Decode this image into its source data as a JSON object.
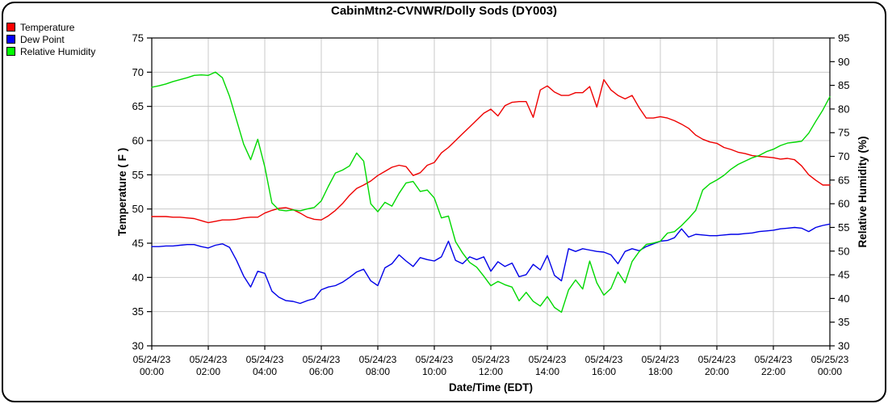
{
  "title": "CabinMtn2-CVNWR/Dolly Sods (DY003)",
  "chart_data": {
    "type": "line",
    "title": "CabinMtn2-CVNWR/Dolly Sods (DY003)",
    "x_label": "Date/Time (EDT)",
    "interval_minutes": 15,
    "start": "05/24/23 00:00",
    "end": "05/25/23 00:00",
    "grid": true,
    "legend_position": "top-left",
    "background_color": "#ffffff",
    "grid_color": "#c9c9c9",
    "axis_color": "#000000",
    "y_left": {
      "label": "Temperature ( F )",
      "min": 30,
      "max": 75,
      "tick_step": 5,
      "ticks": [
        75,
        70,
        65,
        60,
        55,
        50,
        45,
        40,
        35,
        30
      ]
    },
    "y_right": {
      "label": "Relative Humidity (%)",
      "min": 30,
      "max": 95,
      "tick_step": 5,
      "ticks": [
        95,
        90,
        85,
        80,
        75,
        70,
        65,
        60,
        55,
        50,
        45,
        40,
        35,
        30
      ]
    },
    "x_ticks": [
      {
        "date": "05/24/23",
        "time": "00:00"
      },
      {
        "date": "05/24/23",
        "time": "02:00"
      },
      {
        "date": "05/24/23",
        "time": "04:00"
      },
      {
        "date": "05/24/23",
        "time": "06:00"
      },
      {
        "date": "05/24/23",
        "time": "08:00"
      },
      {
        "date": "05/24/23",
        "time": "10:00"
      },
      {
        "date": "05/24/23",
        "time": "12:00"
      },
      {
        "date": "05/24/23",
        "time": "14:00"
      },
      {
        "date": "05/24/23",
        "time": "16:00"
      },
      {
        "date": "05/24/23",
        "time": "18:00"
      },
      {
        "date": "05/24/23",
        "time": "20:00"
      },
      {
        "date": "05/24/23",
        "time": "22:00"
      },
      {
        "date": "05/25/23",
        "time": "00:00"
      }
    ],
    "legend": [
      {
        "label": "Temperature",
        "color": "#ff0000"
      },
      {
        "label": "Dew Point",
        "color": "#0000ff"
      },
      {
        "label": "Relative Humidity",
        "color": "#00ff00"
      }
    ],
    "series": [
      {
        "name": "Temperature",
        "unit": "F",
        "axis": "left",
        "color": "#ee0000",
        "values": [
          48.9,
          48.9,
          48.9,
          48.8,
          48.8,
          48.7,
          48.6,
          48.3,
          48.0,
          48.2,
          48.4,
          48.4,
          48.5,
          48.7,
          48.8,
          48.8,
          49.4,
          49.8,
          50.1,
          50.2,
          49.9,
          49.4,
          48.8,
          48.5,
          48.4,
          49.0,
          49.8,
          50.8,
          52.0,
          53.0,
          53.5,
          54.1,
          54.9,
          55.5,
          56.1,
          56.4,
          56.2,
          54.9,
          55.3,
          56.4,
          56.8,
          58.2,
          59.0,
          60.0,
          61.0,
          62.0,
          63.0,
          64.0,
          64.6,
          63.6,
          65.1,
          65.6,
          65.7,
          65.7,
          63.4,
          67.4,
          68.0,
          67.1,
          66.6,
          66.6,
          67.0,
          67.0,
          67.9,
          64.9,
          68.9,
          67.4,
          66.6,
          66.1,
          66.6,
          64.8,
          63.3,
          63.3,
          63.5,
          63.3,
          62.9,
          62.4,
          61.8,
          60.8,
          60.2,
          59.8,
          59.6,
          59.0,
          58.7,
          58.3,
          58.1,
          57.8,
          57.7,
          57.6,
          57.5,
          57.3,
          57.4,
          57.2,
          56.3,
          55.0,
          54.2,
          53.5,
          53.5
        ]
      },
      {
        "name": "Dew Point",
        "unit": "F",
        "axis": "left",
        "color": "#0000e8",
        "values": [
          44.5,
          44.5,
          44.6,
          44.6,
          44.7,
          44.8,
          44.8,
          44.5,
          44.3,
          44.7,
          44.9,
          44.4,
          42.5,
          40.2,
          38.6,
          40.9,
          40.6,
          38.0,
          37.1,
          36.6,
          36.5,
          36.2,
          36.6,
          36.9,
          38.2,
          38.6,
          38.8,
          39.3,
          40.0,
          40.8,
          41.2,
          39.5,
          38.8,
          41.4,
          42.0,
          43.3,
          42.4,
          41.6,
          42.9,
          42.6,
          42.4,
          43.0,
          45.3,
          42.5,
          42.0,
          43.0,
          42.6,
          43.0,
          40.9,
          42.3,
          41.6,
          42.1,
          40.1,
          40.4,
          41.9,
          41.1,
          43.2,
          40.3,
          39.5,
          44.2,
          43.8,
          44.2,
          44.0,
          43.8,
          43.7,
          43.3,
          42.0,
          43.8,
          44.2,
          43.9,
          44.5,
          44.9,
          45.3,
          45.4,
          45.8,
          47.1,
          45.9,
          46.3,
          46.2,
          46.1,
          46.1,
          46.2,
          46.3,
          46.3,
          46.4,
          46.5,
          46.7,
          46.8,
          46.9,
          47.1,
          47.2,
          47.3,
          47.2,
          46.7,
          47.3,
          47.6,
          47.8
        ]
      },
      {
        "name": "Relative Humidity",
        "unit": "%",
        "axis": "right",
        "color": "#00d800",
        "values": [
          84.6,
          84.9,
          85.3,
          85.8,
          86.2,
          86.6,
          87.1,
          87.2,
          87.1,
          87.8,
          86.6,
          82.7,
          77.7,
          72.6,
          69.3,
          73.6,
          67.8,
          60.2,
          58.7,
          58.5,
          58.7,
          58.5,
          58.9,
          59.2,
          60.6,
          63.7,
          66.5,
          67.1,
          68.0,
          70.7,
          69.0,
          60.0,
          58.3,
          60.3,
          59.5,
          62.2,
          64.4,
          64.7,
          62.6,
          62.9,
          61.2,
          57.0,
          57.4,
          52.0,
          49.6,
          47.6,
          46.6,
          44.7,
          42.7,
          43.6,
          42.9,
          42.4,
          39.5,
          41.3,
          39.4,
          38.4,
          40.4,
          38.1,
          37.1,
          41.8,
          43.9,
          42.0,
          47.9,
          43.3,
          40.7,
          42.1,
          45.6,
          43.3,
          47.8,
          49.9,
          51.4,
          51.7,
          52.1,
          53.8,
          54.1,
          55.4,
          56.9,
          58.6,
          62.9,
          64.2,
          65.0,
          66.0,
          67.3,
          68.3,
          69.0,
          69.7,
          70.2,
          71.0,
          71.5,
          72.3,
          72.8,
          73.0,
          73.2,
          74.9,
          77.4,
          79.8,
          82.6
        ]
      }
    ]
  }
}
